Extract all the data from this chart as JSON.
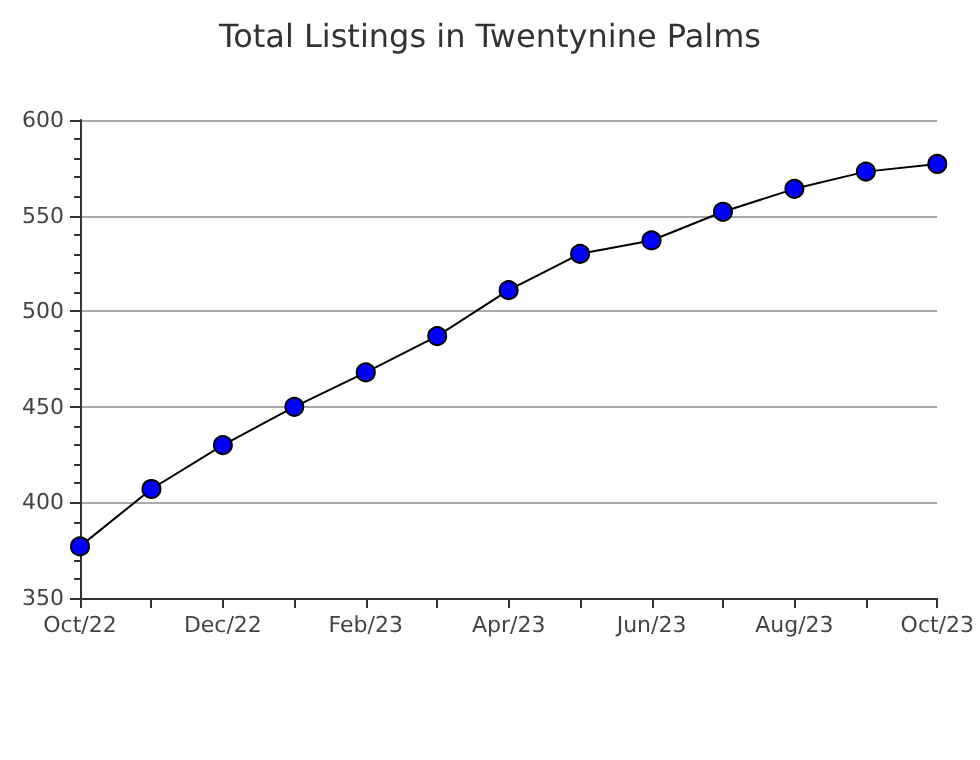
{
  "chart_data": {
    "type": "line",
    "title": "Total Listings in Twentynine Palms",
    "categories": [
      "Oct/22",
      null,
      "Dec/22",
      null,
      "Feb/23",
      null,
      "Apr/23",
      null,
      "Jun/23",
      null,
      "Aug/23",
      null,
      "Oct/23"
    ],
    "series": [
      {
        "color": "#0000ff",
        "values": [
          377,
          407,
          430,
          450,
          468,
          487,
          511,
          530,
          537,
          552,
          564,
          573,
          577
        ]
      }
    ],
    "ylim": [
      350,
      600
    ],
    "yticks": [
      350,
      400,
      450,
      500,
      550,
      600
    ],
    "grid": "y",
    "marker": "circle",
    "line_style": "solid"
  }
}
